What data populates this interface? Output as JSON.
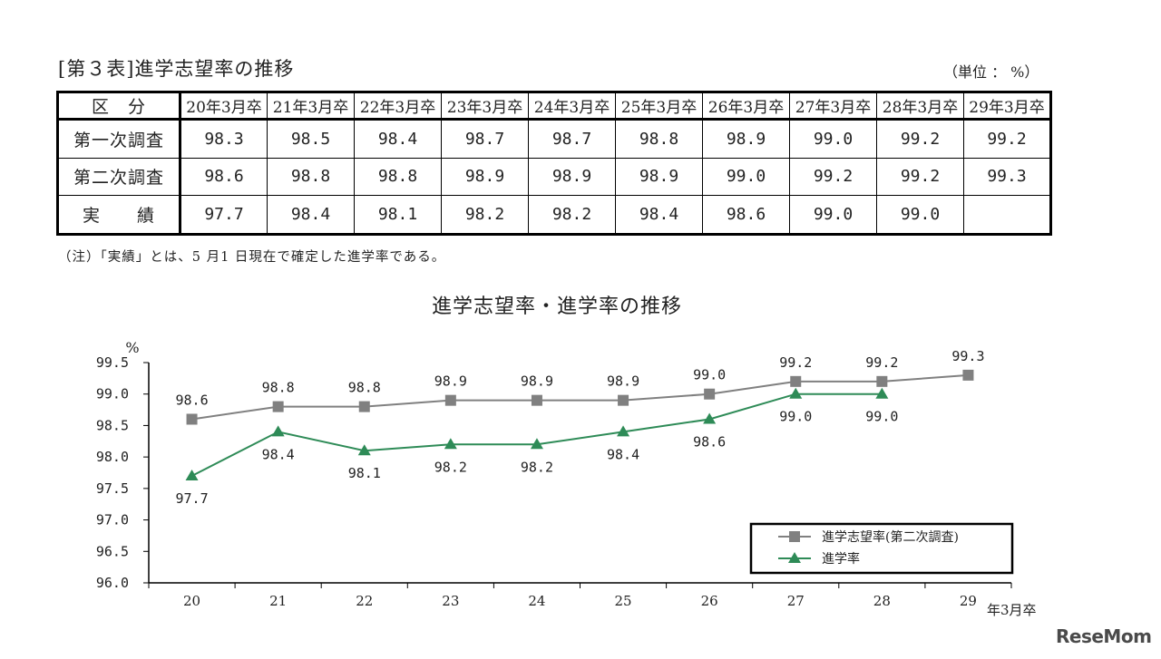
{
  "table": {
    "title": "[第３表]進学志望率の推移",
    "unit": "（単位 ： %）",
    "header_label": "区　分",
    "columns": [
      "20年3月卒",
      "21年3月卒",
      "22年3月卒",
      "23年3月卒",
      "24年3月卒",
      "25年3月卒",
      "26年3月卒",
      "27年3月卒",
      "28年3月卒",
      "29年3月卒"
    ],
    "rows": [
      {
        "label": "第一次調査",
        "values": [
          "98.3",
          "98.5",
          "98.4",
          "98.7",
          "98.7",
          "98.8",
          "98.9",
          "99.0",
          "99.2",
          "99.2"
        ]
      },
      {
        "label": "第二次調査",
        "values": [
          "98.6",
          "98.8",
          "98.8",
          "98.9",
          "98.9",
          "98.9",
          "99.0",
          "99.2",
          "99.2",
          "99.3"
        ]
      },
      {
        "label": "実　　績",
        "values": [
          "97.7",
          "98.4",
          "98.1",
          "98.2",
          "98.2",
          "98.4",
          "98.6",
          "99.0",
          "99.0",
          ""
        ]
      }
    ],
    "note": "（注）「実績」とは、5 月1 日現在で確定した進学率である。"
  },
  "chart_data": {
    "type": "line",
    "title": "進学志望率・進学率の推移",
    "ylabel": "%",
    "xlabel": "年3月卒",
    "ylim": [
      96.0,
      99.5
    ],
    "yticks": [
      "96.0",
      "96.5",
      "97.0",
      "97.5",
      "98.0",
      "98.5",
      "99.0",
      "99.5"
    ],
    "categories": [
      "20",
      "21",
      "22",
      "23",
      "24",
      "25",
      "26",
      "27",
      "28",
      "29"
    ],
    "legend_position": "bottom-right",
    "series": [
      {
        "name": "進学志望率(第二次調査)",
        "marker": "square",
        "color": "#808080",
        "values": [
          98.6,
          98.8,
          98.8,
          98.9,
          98.9,
          98.9,
          99.0,
          99.2,
          99.2,
          99.3
        ]
      },
      {
        "name": "進学率",
        "marker": "triangle",
        "color": "#2e8b57",
        "values": [
          97.7,
          98.4,
          98.1,
          98.2,
          98.2,
          98.4,
          98.6,
          99.0,
          99.0,
          null
        ]
      }
    ]
  },
  "watermark": "ReseMom"
}
